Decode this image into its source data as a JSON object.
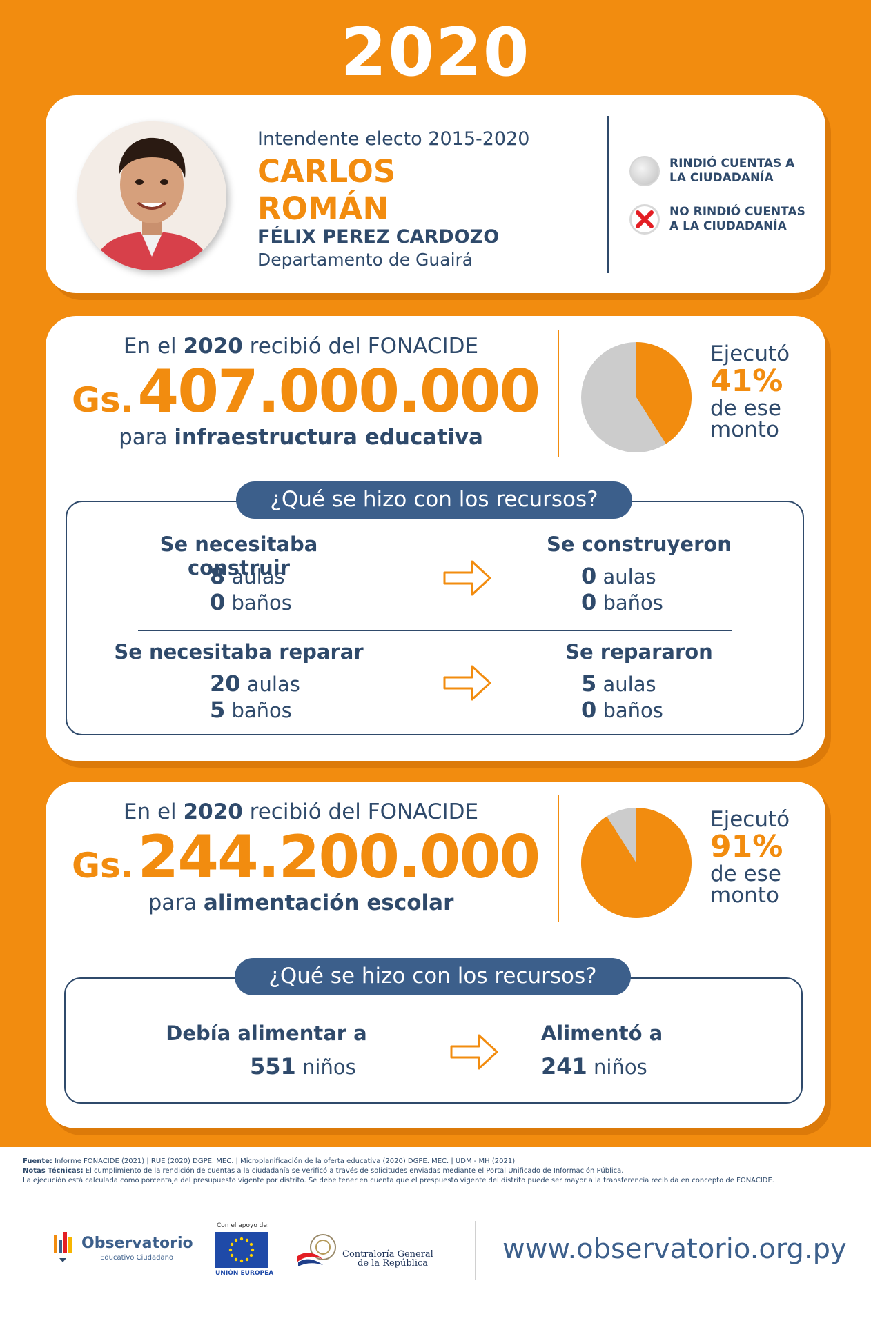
{
  "year": "2020",
  "profile": {
    "subtitle": "Intendente electo 2015-2020",
    "name_line1": "CARLOS",
    "name_line2": "ROMÁN",
    "district": "FÉLIX PEREZ CARDOZO",
    "department": "Departamento de Guairá"
  },
  "legend": {
    "rendered": "RINDIÓ CUENTAS A LA CIUDADANÍA",
    "not_rendered": "NO RINDIÓ CUENTAS A LA CIUDADANÍA"
  },
  "infra": {
    "intro_pre": "En el",
    "intro_year": "2020",
    "intro_post": "recibió del FONACIDE",
    "currency": "Gs.",
    "amount": "407.000.000",
    "purpose_pre": "para",
    "purpose": "infraestructura educativa",
    "executed_label": "Ejecutó",
    "executed_pct": "41%",
    "executed_value": 41,
    "executed_suffix1": "de ese",
    "executed_suffix2": "monto",
    "resources_title": "¿Qué se hizo con los recursos?",
    "need_build_title": "Se necesitaba construir",
    "need_build_aulas": "8",
    "need_build_banos": "0",
    "built_title": "Se construyeron",
    "built_aulas": "0",
    "built_banos": "0",
    "need_repair_title": "Se necesitaba reparar",
    "need_repair_aulas": "20",
    "need_repair_banos": "5",
    "repaired_title": "Se repararon",
    "repaired_aulas": "5",
    "repaired_banos": "0",
    "aulas_label": "aulas",
    "banos_label": "baños"
  },
  "food": {
    "intro_pre": "En el",
    "intro_year": "2020",
    "intro_post": "recibió del FONACIDE",
    "currency": "Gs.",
    "amount": "244.200.000",
    "purpose_pre": "para",
    "purpose": "alimentación escolar",
    "executed_label": "Ejecutó",
    "executed_pct": "91%",
    "executed_value": 91,
    "executed_suffix1": "de ese",
    "executed_suffix2": "monto",
    "resources_title": "¿Qué se hizo con los recursos?",
    "should_feed_title": "Debía alimentar a",
    "should_feed_count": "551",
    "fed_title": "Alimentó a",
    "fed_count": "241",
    "kids_label": "niños"
  },
  "footer": {
    "source_label": "Fuente:",
    "source_text": "Informe FONACIDE (2021) | RUE (2020) DGPE. MEC. | Microplanificación de la oferta educativa (2020) DGPE. MEC. | UDM - MH (2021)",
    "notes_label": "Notas Técnicas:",
    "notes_text": "El cumplimiento de la rendición de cuentas a la ciudadanía se verificó a través de solicitudes enviadas mediante el Portal Unificado de Información Pública.",
    "notes_text2": "La ejecución está calculada como porcentaje del presupuesto vigente por distrito. Se debe tener en cuenta que el prespuesto vigente del distrito puede ser mayor a la transferencia recibida en concepto de FONACIDE.",
    "observatorio_title": "Observatorio",
    "observatorio_sub": "Educativo Ciudadano",
    "eu_support": "Con el apoyo de:",
    "eu_name": "UNIÓN EUROPEA",
    "cgr_line1": "Contraloría General",
    "cgr_line2": "de la República",
    "website": "www.observatorio.org.py"
  },
  "colors": {
    "orange": "#f28c0f",
    "navy": "#2f4a6b",
    "pill_blue": "#3c5f8b",
    "pie_gray": "#cccccc",
    "red_x": "#e31e24"
  }
}
